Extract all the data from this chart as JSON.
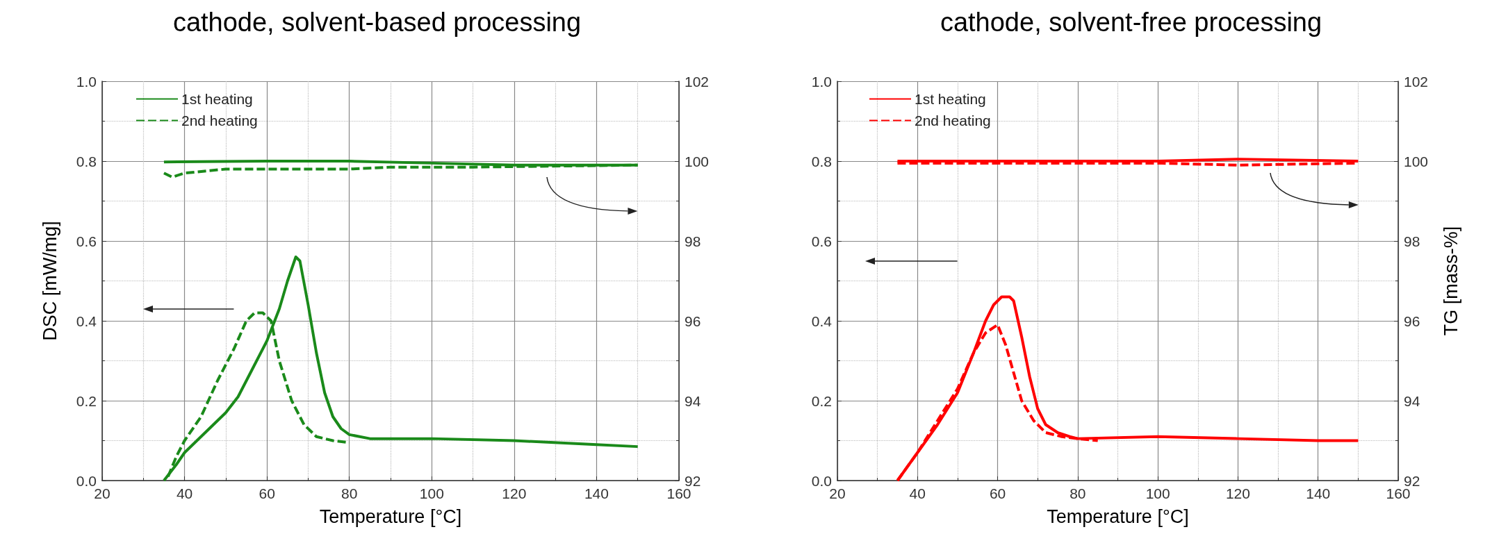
{
  "chart_data": [
    {
      "type": "line",
      "title": "cathode, solvent-based processing",
      "xlabel": "Temperature [°C]",
      "ylabel": "DSC [mW/mg]",
      "xlim": [
        20,
        160
      ],
      "xticks": [
        20,
        40,
        60,
        80,
        100,
        120,
        140,
        160
      ],
      "ylim": [
        0,
        1
      ],
      "yticks": [
        {
          "value": 0,
          "label": "0.0"
        },
        {
          "value": 0.2,
          "label": "0.2"
        },
        {
          "value": 0.4,
          "label": "0.4"
        },
        {
          "value": 0.6,
          "label": "0.6"
        },
        {
          "value": 0.8,
          "label": "0.8"
        },
        {
          "value": 1,
          "label": "1.0"
        }
      ],
      "y2lim": [
        92,
        102
      ],
      "y2ticks": [
        92,
        94,
        96,
        98,
        100,
        102
      ],
      "grid": true,
      "legend": "top left",
      "marker": "none",
      "series": [
        {
          "name": "1st heating",
          "color": "#1a8a1a",
          "line_style": "solid",
          "x": [
            35,
            38,
            40,
            45,
            50,
            53,
            56,
            60,
            63,
            65,
            67,
            68,
            70,
            72,
            74,
            76,
            78,
            80,
            85,
            100,
            120,
            140,
            150
          ],
          "values": [
            0,
            0.04,
            0.07,
            0.12,
            0.17,
            0.21,
            0.27,
            0.35,
            0.43,
            0.5,
            0.56,
            0.55,
            0.44,
            0.32,
            0.22,
            0.16,
            0.13,
            0.115,
            0.105,
            0.105,
            0.1,
            0.09,
            0.085
          ]
        },
        {
          "name": "2nd heating",
          "color": "#1a8a1a",
          "line_style": "dashed",
          "x": [
            36,
            38,
            40,
            44,
            48,
            52,
            55,
            57,
            59,
            61,
            63,
            66,
            69,
            72,
            76,
            80
          ],
          "values": [
            0.01,
            0.06,
            0.1,
            0.16,
            0.25,
            0.33,
            0.4,
            0.42,
            0.42,
            0.4,
            0.3,
            0.2,
            0.14,
            0.11,
            0.1,
            0.095
          ]
        },
        {
          "color": "#1a8a1a",
          "line_style": "solid",
          "axis": "y2",
          "x": [
            35,
            60,
            80,
            100,
            120,
            150
          ],
          "values": [
            99.98,
            100,
            100,
            99.95,
            99.9,
            99.9
          ]
        },
        {
          "color": "#1a8a1a",
          "line_style": "dashed",
          "axis": "y2",
          "x": [
            35,
            37,
            40,
            50,
            80,
            90,
            110,
            150
          ],
          "values": [
            99.7,
            99.6,
            99.7,
            99.8,
            99.8,
            99.85,
            99.85,
            99.9
          ]
        }
      ]
    },
    {
      "type": "line",
      "title": "cathode, solvent-free processing",
      "xlabel": "Temperature [°C]",
      "y2label": "TG [mass-%]",
      "xlim": [
        20,
        160
      ],
      "xticks": [
        20,
        40,
        60,
        80,
        100,
        120,
        140,
        160
      ],
      "ylim": [
        0,
        1
      ],
      "yticks": [
        {
          "value": 0,
          "label": "0.0"
        },
        {
          "value": 0.2,
          "label": "0.2"
        },
        {
          "value": 0.4,
          "label": "0.4"
        },
        {
          "value": 0.6,
          "label": "0.6"
        },
        {
          "value": 0.8,
          "label": "0.8"
        },
        {
          "value": 1,
          "label": "1.0"
        }
      ],
      "y2lim": [
        92,
        102
      ],
      "y2ticks": [
        92,
        94,
        96,
        98,
        100,
        102
      ],
      "grid": true,
      "legend": "top left",
      "marker": "none",
      "series": [
        {
          "name": "1st heating",
          "color": "#ff0000",
          "line_style": "solid",
          "x": [
            35,
            40,
            45,
            50,
            54,
            57,
            59,
            61,
            63,
            64,
            66,
            68,
            70,
            72,
            75,
            78,
            80,
            100,
            120,
            140,
            150
          ],
          "values": [
            0,
            0.07,
            0.14,
            0.22,
            0.32,
            0.4,
            0.44,
            0.46,
            0.46,
            0.45,
            0.36,
            0.26,
            0.18,
            0.14,
            0.12,
            0.11,
            0.105,
            0.11,
            0.105,
            0.1,
            0.1
          ]
        },
        {
          "name": "2nd heating",
          "color": "#ff0000",
          "line_style": "dashed",
          "x": [
            35,
            40,
            45,
            50,
            54,
            57,
            60,
            62,
            64,
            66,
            69,
            72,
            76,
            80,
            85
          ],
          "values": [
            0,
            0.07,
            0.15,
            0.23,
            0.32,
            0.37,
            0.39,
            0.34,
            0.27,
            0.2,
            0.15,
            0.12,
            0.11,
            0.105,
            0.1
          ]
        },
        {
          "color": "#ff0000",
          "line_style": "solid",
          "axis": "y2",
          "x": [
            35,
            60,
            80,
            100,
            120,
            150
          ],
          "values": [
            100,
            100,
            100,
            100,
            100.05,
            100
          ]
        },
        {
          "color": "#ff0000",
          "line_style": "dashed",
          "axis": "y2",
          "x": [
            35,
            60,
            80,
            100,
            120,
            150
          ],
          "values": [
            99.95,
            99.95,
            99.95,
            99.95,
            99.9,
            99.95
          ]
        }
      ]
    }
  ]
}
